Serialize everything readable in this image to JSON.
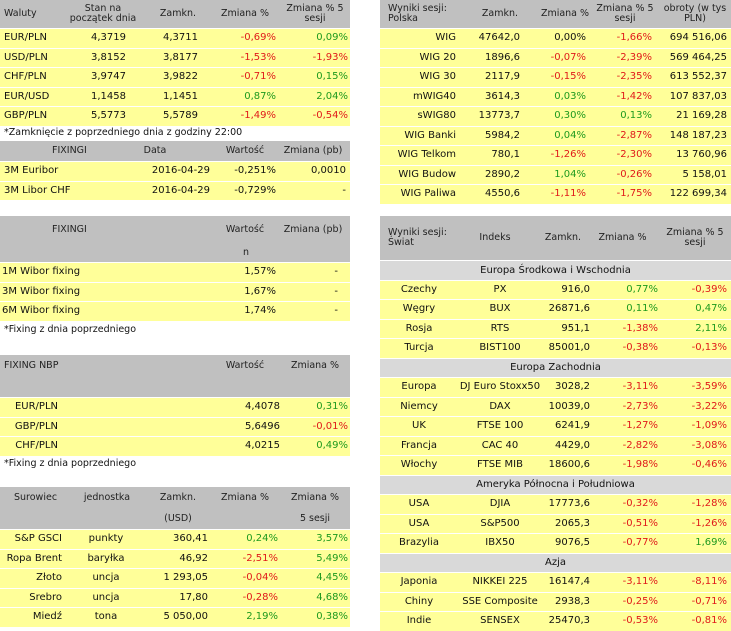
{
  "currencies": {
    "headers": [
      "Waluty",
      "Stan na początek dnia",
      "Zamkn.",
      "Zmiana %",
      "Zmiana % 5 sesji"
    ],
    "rows": [
      [
        "EUR/PLN",
        "4,3719",
        "4,3711",
        "-0,69%",
        "0,09%"
      ],
      [
        "USD/PLN",
        "3,8152",
        "3,8177",
        "-1,53%",
        "-1,93%"
      ],
      [
        "CHF/PLN",
        "3,9747",
        "3,9822",
        "-0,71%",
        "0,15%"
      ],
      [
        "EUR/USD",
        "1,1458",
        "1,1451",
        "0,87%",
        "2,04%"
      ],
      [
        "GBP/PLN",
        "5,5773",
        "5,5789",
        "-1,49%",
        "-0,54%"
      ]
    ],
    "note": "*Zamknięcie z poprzedniego dnia z godziny 22:00"
  },
  "fixings1": {
    "headers": [
      "FIXINGI",
      "Data",
      "Wartość",
      "Zmiana (pb)"
    ],
    "rows": [
      [
        "3M Euribor",
        "2016-04-29",
        "-0,251%",
        "0,0010"
      ],
      [
        "3M Libor CHF",
        "2016-04-29",
        "-0,729%",
        "-"
      ]
    ]
  },
  "fixings2": {
    "headers": [
      "FIXINGI",
      "Wartość",
      "Zmiana (pb)",
      "n"
    ],
    "rows": [
      [
        "1M Wibor fixing",
        "1,57%",
        "-"
      ],
      [
        "3M Wibor fixing",
        "1,67%",
        "-"
      ],
      [
        "6M Wibor fixing",
        "1,74%",
        "-"
      ]
    ],
    "note": "*Fixing z dnia poprzedniego"
  },
  "nbp": {
    "headers": [
      "FIXING NBP",
      "Wartość",
      "Zmiana %"
    ],
    "rows": [
      [
        "EUR/PLN",
        "4,4078",
        "0,31%"
      ],
      [
        "GBP/PLN",
        "5,6496",
        "-0,01%"
      ],
      [
        "CHF/PLN",
        "4,0215",
        "0,49%"
      ]
    ],
    "note": "*Fixing z dnia poprzedniego"
  },
  "commodities": {
    "headers": [
      "Surowiec",
      "jednostka",
      "Zamkn.",
      "Zmiana %",
      "Zmiana %",
      "(USD)",
      "5 sesji"
    ],
    "rows": [
      [
        "S&P GSCI",
        "punkty",
        "360,41",
        "0,24%",
        "3,57%"
      ],
      [
        "Ropa Brent",
        "baryłka",
        "46,92",
        "-2,51%",
        "5,49%"
      ],
      [
        "Złoto",
        "uncja",
        "1 293,05",
        "-0,04%",
        "4,45%"
      ],
      [
        "Srebro",
        "uncja",
        "17,80",
        "-0,28%",
        "4,68%"
      ],
      [
        "Miedź",
        "tona",
        "5 050,00",
        "2,19%",
        "0,38%"
      ]
    ]
  },
  "poland": {
    "headers": [
      "Wyniki sesji: Polska",
      "Zamkn.",
      "Zmiana %",
      "Zmiana % 5 sesji",
      "obroty (w tys PLN)"
    ],
    "rows": [
      [
        "WIG",
        "47642,0",
        "0,00%",
        "-1,66%",
        "694 516,06"
      ],
      [
        "WIG 20",
        "1896,6",
        "-0,07%",
        "-2,39%",
        "569 464,25"
      ],
      [
        "WIG 30",
        "2117,9",
        "-0,15%",
        "-2,35%",
        "613 552,37"
      ],
      [
        "mWIG40",
        "3614,3",
        "0,03%",
        "-1,42%",
        "107 837,03"
      ],
      [
        "sWIG80",
        "13773,7",
        "0,30%",
        "0,13%",
        "21 169,28"
      ],
      [
        "WIG Banki",
        "5984,2",
        "0,04%",
        "-2,87%",
        "148 187,23"
      ],
      [
        "WIG Telkom",
        "780,1",
        "-1,26%",
        "-2,30%",
        "13 760,96"
      ],
      [
        "WIG Budow",
        "2890,2",
        "1,04%",
        "-0,26%",
        "5 158,01"
      ],
      [
        "WIG Paliwa",
        "4550,6",
        "-1,11%",
        "-1,75%",
        "122 699,34"
      ]
    ]
  },
  "world": {
    "headers": [
      "Wyniki sesji: Świat",
      "Indeks",
      "Zamkn.",
      "Zmiana %",
      "Zmiana % 5 sesji"
    ],
    "sections": [
      {
        "title": "Europa Środkowa i Wschodnia",
        "rows": [
          [
            "Czechy",
            "PX",
            "916,0",
            "0,77%",
            "-0,39%"
          ],
          [
            "Węgry",
            "BUX",
            "26871,6",
            "0,11%",
            "0,47%"
          ],
          [
            "Rosja",
            "RTS",
            "951,1",
            "-1,38%",
            "2,11%"
          ],
          [
            "Turcja",
            "BIST100",
            "85001,0",
            "-0,38%",
            "-0,13%"
          ]
        ]
      },
      {
        "title": "Europa Zachodnia",
        "rows": [
          [
            "Europa",
            "DJ Euro Stoxx50",
            "3028,2",
            "-3,11%",
            "-3,59%"
          ],
          [
            "Niemcy",
            "DAX",
            "10039,0",
            "-2,73%",
            "-3,22%"
          ],
          [
            "UK",
            "FTSE 100",
            "6241,9",
            "-1,27%",
            "-1,09%"
          ],
          [
            "Francja",
            "CAC 40",
            "4429,0",
            "-2,82%",
            "-3,08%"
          ],
          [
            "Włochy",
            "FTSE MIB",
            "18600,6",
            "-1,98%",
            "-0,46%"
          ]
        ]
      },
      {
        "title": "Ameryka Północna i Południowa",
        "rows": [
          [
            "USA",
            "DJIA",
            "17773,6",
            "-0,32%",
            "-1,28%"
          ],
          [
            "USA",
            "S&P500",
            "2065,3",
            "-0,51%",
            "-1,26%"
          ],
          [
            "Brazylia",
            "IBX50",
            "9076,5",
            "-0,77%",
            "1,69%"
          ]
        ]
      },
      {
        "title": "Azja",
        "rows": [
          [
            "Japonia",
            "NIKKEI 225",
            "16147,4",
            "-3,11%",
            "-8,11%"
          ],
          [
            "Chiny",
            "SSE Composite",
            "2938,3",
            "-0,25%",
            "-0,71%"
          ],
          [
            "Indie",
            "SENSEX",
            "25470,3",
            "-0,53%",
            "-0,81%"
          ]
        ]
      }
    ]
  },
  "colors": {
    "header_bg": "#c0c0c0",
    "row_bg": "#ffff99",
    "negative": "#e01a1a",
    "positive": "#1e9a1e",
    "section_bg": "#d9d9d9"
  }
}
